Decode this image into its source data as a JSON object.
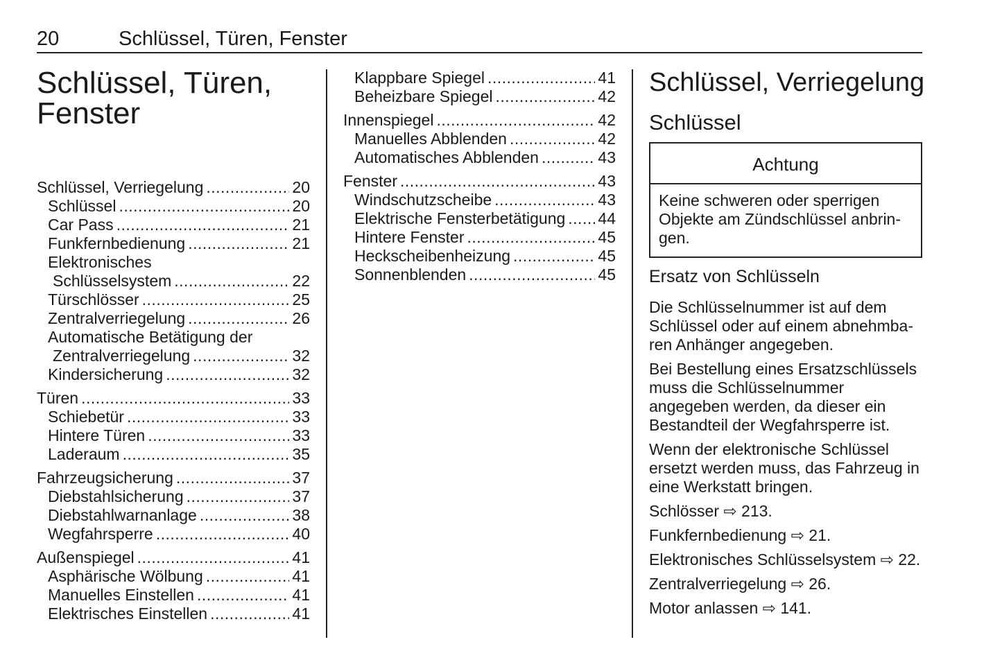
{
  "header": {
    "page_number": "20",
    "running_title": "Schlüssel, Türen, Fenster"
  },
  "chapter_title": "Schlüssel, Türen, Fenster",
  "toc_left": [
    {
      "label": "Schlüssel, Verriegelung",
      "page": "20",
      "level": "main"
    },
    {
      "label": "Schlüssel",
      "page": "20",
      "level": "sub"
    },
    {
      "label": "Car Pass",
      "page": "21",
      "level": "sub"
    },
    {
      "label": "Funkfernbedienung",
      "page": "21",
      "level": "sub"
    },
    {
      "label": "Elektronisches",
      "page": "",
      "level": "sub"
    },
    {
      "label": "Schlüsselsystem",
      "page": "22",
      "level": "sub2"
    },
    {
      "label": "Türschlösser",
      "page": "25",
      "level": "sub"
    },
    {
      "label": "Zentralverriegelung",
      "page": "26",
      "level": "sub"
    },
    {
      "label": "Automatische Betätigung der",
      "page": "",
      "level": "sub"
    },
    {
      "label": "Zentralverriegelung",
      "page": "32",
      "level": "sub2"
    },
    {
      "label": "Kindersicherung",
      "page": "32",
      "level": "sub"
    },
    {
      "label": "Türen",
      "page": "33",
      "level": "main"
    },
    {
      "label": "Schiebetür",
      "page": "33",
      "level": "sub"
    },
    {
      "label": "Hintere Türen",
      "page": "33",
      "level": "sub"
    },
    {
      "label": "Laderaum",
      "page": "35",
      "level": "sub"
    },
    {
      "label": "Fahrzeugsicherung",
      "page": "37",
      "level": "main"
    },
    {
      "label": "Diebstahlsicherung",
      "page": "37",
      "level": "sub"
    },
    {
      "label": "Diebstahlwarnanlage",
      "page": "38",
      "level": "sub"
    },
    {
      "label": "Wegfahrsperre",
      "page": "40",
      "level": "sub"
    },
    {
      "label": "Außenspiegel",
      "page": "41",
      "level": "main"
    },
    {
      "label": "Asphärische Wölbung",
      "page": "41",
      "level": "sub"
    },
    {
      "label": "Manuelles Einstellen",
      "page": "41",
      "level": "sub"
    },
    {
      "label": "Elektrisches Einstellen",
      "page": "41",
      "level": "sub"
    }
  ],
  "toc_middle": [
    {
      "label": "Klappbare Spiegel",
      "page": "41",
      "level": "sub"
    },
    {
      "label": "Beheizbare Spiegel",
      "page": "42",
      "level": "sub"
    },
    {
      "label": "Innenspiegel",
      "page": "42",
      "level": "main"
    },
    {
      "label": "Manuelles Abblenden",
      "page": "42",
      "level": "sub"
    },
    {
      "label": "Automatisches Abblenden",
      "page": "43",
      "level": "sub"
    },
    {
      "label": "Fenster",
      "page": "43",
      "level": "main"
    },
    {
      "label": "Windschutzscheibe",
      "page": "43",
      "level": "sub"
    },
    {
      "label": "Elektrische Fensterbetätigung",
      "page": "44",
      "level": "sub"
    },
    {
      "label": "Hintere Fenster",
      "page": "45",
      "level": "sub"
    },
    {
      "label": "Heckscheibenheizung",
      "page": "45",
      "level": "sub"
    },
    {
      "label": "Sonnenblenden",
      "page": "45",
      "level": "sub"
    }
  ],
  "right": {
    "title": "Schlüssel, Verriegelung",
    "subtitle": "Schlüssel",
    "caution": {
      "heading": "Achtung",
      "text": "Keine schweren oder sperrigen Objekte am Zündschlüssel anbrin­gen."
    },
    "section": "Ersatz von Schlüsseln",
    "paragraphs": [
      "Die Schlüsselnummer ist auf dem Schlüssel oder auf einem abnehmba­ren Anhänger angegeben.",
      "Bei Bestellung eines Ersatzschlüs­sels muss die Schlüsselnummer angegeben werden, da dieser ein Bestandteil der Wegfahrsperre ist.",
      "Wenn der elektronische Schlüssel ersetzt werden muss, das Fahrzeug in eine Werkstatt bringen."
    ],
    "references": [
      {
        "label": "Schlösser",
        "page": "213."
      },
      {
        "label": "Funkfernbedienung",
        "page": "21."
      },
      {
        "label": "Elektronisches Schlüsselsystem",
        "page": "22."
      },
      {
        "label": "Zentralverriegelung",
        "page": "26."
      },
      {
        "label": "Motor anlassen",
        "page": "141."
      }
    ],
    "ref_icon": "⇨"
  }
}
